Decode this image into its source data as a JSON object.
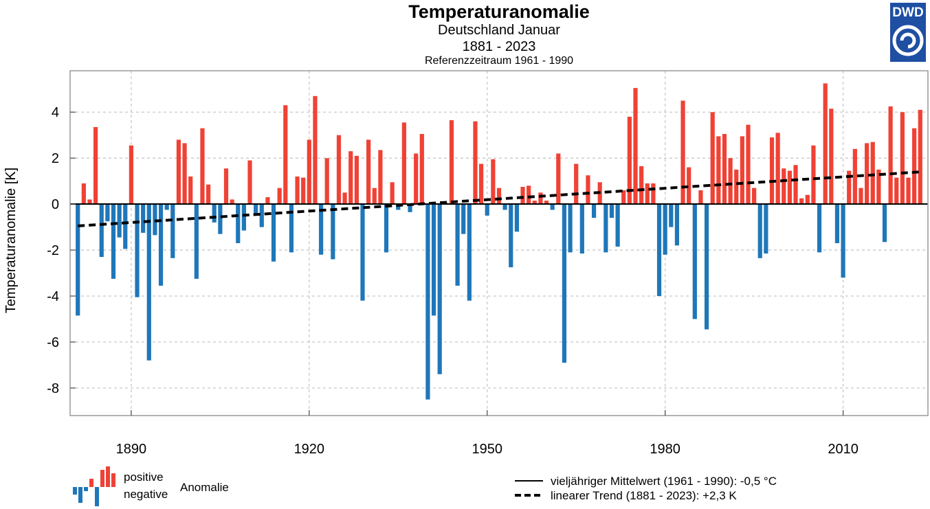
{
  "header": {
    "title": "Temperaturanomalie",
    "subtitle": "Deutschland Januar",
    "period": "1881 - 2023",
    "reference": "Referenzzeitraum 1961 - 1990"
  },
  "logo": {
    "text": "DWD",
    "color": "#1f4fa3",
    "icon": "dwd-spiral-icon"
  },
  "colors": {
    "positive": "#ef4235",
    "negative": "#1f77b9",
    "grid": "#c8c8c8",
    "trend": "#000000"
  },
  "legend": {
    "positive_label": "positive",
    "negative_label": "negative",
    "anomaly_label": "Anomalie",
    "mean_label": "vieljähriger Mittelwert (1961 - 1990): -0,5 °C",
    "trend_label": "linearer Trend (1881 - 2023): +2,3 K"
  },
  "chart_data": {
    "type": "bar",
    "ylabel": "Temperaturanomalie [K]",
    "xlabel": "",
    "x_start": 1881,
    "x_end": 2023,
    "xlim": [
      1879.7,
      2024.3
    ],
    "ylim": [
      -9.2,
      5.8
    ],
    "xticks": [
      1890,
      1920,
      1950,
      1980,
      2010
    ],
    "yticks": [
      -8,
      -6,
      -4,
      -2,
      0,
      2,
      4
    ],
    "grid": true,
    "trend": {
      "start": [
        1881,
        -0.95
      ],
      "end": [
        2023,
        1.4
      ]
    },
    "values": [
      -4.85,
      0.9,
      0.2,
      3.35,
      -2.3,
      -0.75,
      -3.25,
      -1.45,
      -1.95,
      2.55,
      -4.05,
      -1.25,
      -6.8,
      -1.35,
      -3.55,
      -0.25,
      -2.35,
      2.8,
      2.65,
      1.2,
      -3.25,
      3.3,
      0.85,
      -0.8,
      -1.3,
      1.55,
      0.2,
      -1.7,
      -1.15,
      1.9,
      -0.5,
      -1.0,
      0.3,
      -2.5,
      0.7,
      4.3,
      -2.1,
      1.2,
      1.15,
      2.8,
      4.7,
      -2.2,
      2.0,
      -2.4,
      3.0,
      0.5,
      2.3,
      2.1,
      -4.2,
      2.8,
      0.7,
      2.35,
      -2.1,
      0.95,
      -0.25,
      3.55,
      -0.35,
      2.2,
      3.05,
      -8.5,
      -4.85,
      -7.4,
      0.05,
      3.65,
      -3.55,
      -1.3,
      -4.2,
      3.6,
      1.75,
      -0.5,
      1.95,
      0.7,
      -0.25,
      -2.75,
      -1.2,
      0.75,
      0.8,
      0.15,
      0.5,
      0.15,
      -0.25,
      2.2,
      -6.9,
      -2.1,
      1.75,
      -2.15,
      1.25,
      -0.6,
      0.95,
      -2.1,
      -0.6,
      -1.85,
      0.6,
      3.8,
      5.05,
      1.65,
      0.9,
      0.9,
      -4.0,
      -2.2,
      -1.0,
      -1.8,
      4.5,
      1.6,
      -5.0,
      0.6,
      -5.45,
      4.0,
      2.95,
      3.05,
      2.0,
      1.5,
      2.95,
      3.45,
      0.7,
      -2.35,
      -2.15,
      2.9,
      3.1,
      1.55,
      1.45,
      1.7,
      0.25,
      0.4,
      2.55,
      -2.1,
      5.25,
      4.15,
      -1.7,
      -3.2,
      1.45,
      2.4,
      0.7,
      2.65,
      2.7,
      1.5,
      -1.65,
      4.25,
      1.15,
      4.0,
      1.15,
      3.3,
      4.1
    ]
  }
}
